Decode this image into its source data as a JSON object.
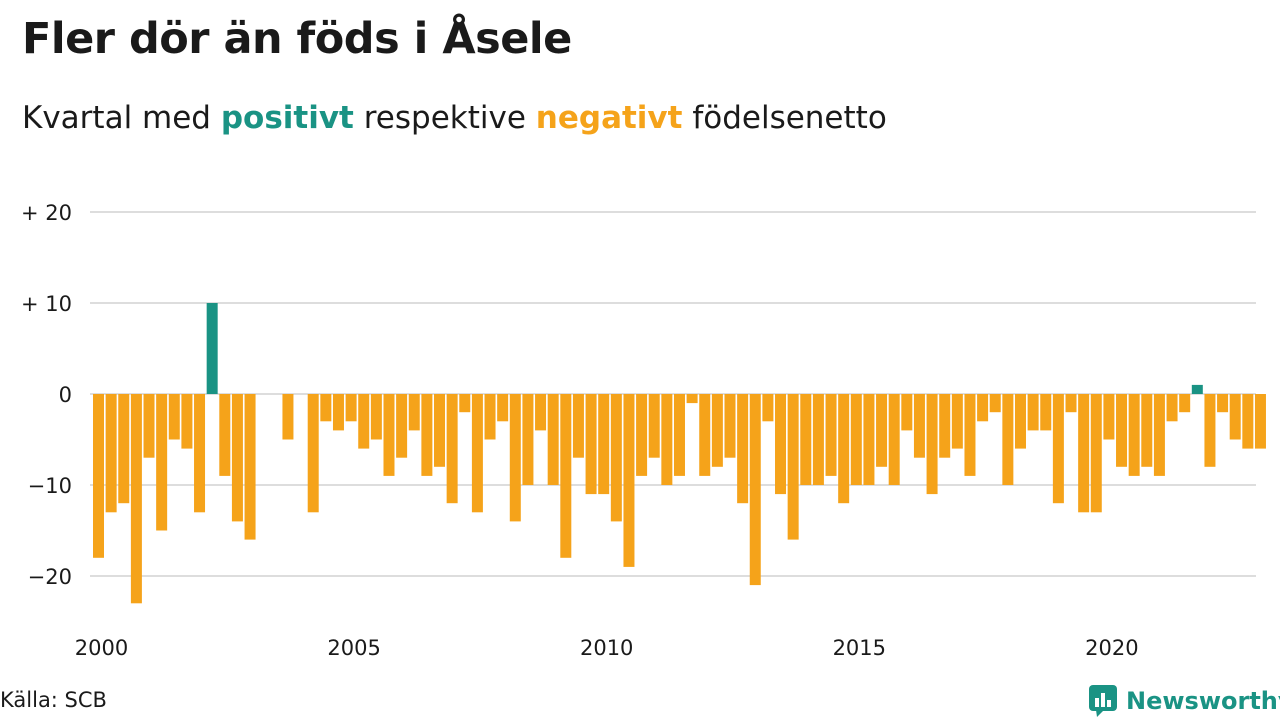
{
  "header": {
    "title": "Fler dör än föds i Åsele",
    "subtitle_pre": "Kvartal med ",
    "subtitle_pos": "positivt",
    "subtitle_mid": " respektive ",
    "subtitle_neg": "negativt",
    "subtitle_post": " födelsenetto"
  },
  "footer": {
    "source": "Källa: SCB",
    "brand": "Newsworthy"
  },
  "colors": {
    "positive": "#1a9384",
    "negative": "#f5a31a",
    "grid": "#dddddd",
    "brand": "#1a9384"
  },
  "chart_data": {
    "type": "bar",
    "x_start": "2000 Q1",
    "y_ticks": [
      {
        "value": 20,
        "label": "+ 20"
      },
      {
        "value": 10,
        "label": "+ 10"
      },
      {
        "value": 0,
        "label": "0"
      },
      {
        "value": -10,
        "label": "−10"
      },
      {
        "value": -20,
        "label": "−20"
      }
    ],
    "x_ticks": [
      "2000",
      "2005",
      "2010",
      "2015",
      "2020"
    ],
    "ylim": [
      -25,
      22
    ],
    "grid": true,
    "values": [
      -18,
      -13,
      -12,
      -23,
      -7,
      -15,
      -5,
      -6,
      -13,
      10,
      -9,
      -14,
      -16,
      0,
      0,
      -5,
      0,
      -13,
      -3,
      -4,
      -3,
      -6,
      -5,
      -9,
      -7,
      -4,
      -9,
      -8,
      -12,
      -2,
      -13,
      -5,
      -3,
      -14,
      -10,
      -4,
      -10,
      -18,
      -7,
      -11,
      -11,
      -14,
      -19,
      -9,
      -7,
      -10,
      -9,
      -1,
      -9,
      -8,
      -7,
      -12,
      -21,
      -3,
      -11,
      -16,
      -10,
      -10,
      -9,
      -12,
      -10,
      -10,
      -8,
      -10,
      -4,
      -7,
      -11,
      -7,
      -6,
      -9,
      -3,
      -2,
      -10,
      -6,
      -4,
      -4,
      -12,
      -2,
      -13,
      -13,
      -5,
      -8,
      -9,
      -8,
      -9,
      -3,
      -2,
      1,
      -8,
      -2,
      -5,
      -6,
      -6
    ]
  }
}
